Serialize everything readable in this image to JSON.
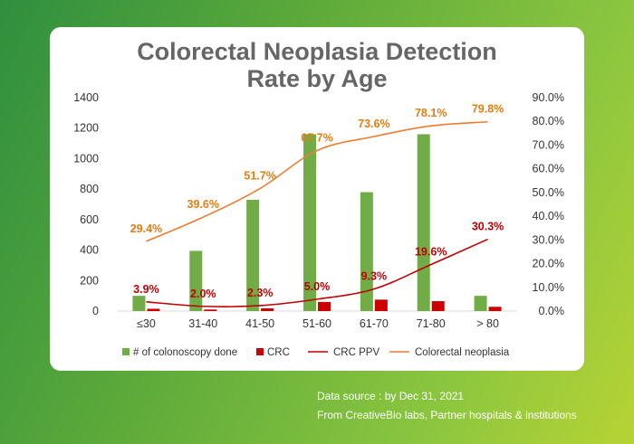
{
  "title": "Colorectal Neoplasia Detection\nRate by Age",
  "footer": {
    "line1": "Data source : by Dec 31, 2021",
    "line2": "From  CreativeBio labs, Partner hospitals & institutions"
  },
  "colors": {
    "colonoscopy": "#70ad47",
    "crc": "#cc0000",
    "crc_ppv": "#c00000",
    "neoplasia": "#ed7d31",
    "label_neoplasia": "#e57c12",
    "label_ppv": "#c00000"
  },
  "chart_data": {
    "type": "bar",
    "title": "Colorectal Neoplasia Detection Rate by Age",
    "categories": [
      "≤30",
      "31-40",
      "41-50",
      "51-60",
      "61-70",
      "71-80",
      "> 80"
    ],
    "y_left": {
      "min": 0,
      "max": 1400,
      "ticks": [
        "0",
        "200",
        "400",
        "600",
        "800",
        "1000",
        "1200",
        "1400"
      ]
    },
    "y_right": {
      "min": 0,
      "max": 90,
      "ticks": [
        "0.0%",
        "10.0%",
        "20.0%",
        "30.0%",
        "40.0%",
        "50.0%",
        "60.0%",
        "70.0%",
        "80.0%",
        "90.0%"
      ]
    },
    "series": [
      {
        "name": "# of colonoscopy done",
        "kind": "bar",
        "axis": "left",
        "values": [
          100,
          395,
          730,
          1160,
          780,
          1160,
          100
        ]
      },
      {
        "name": "CRC",
        "kind": "bar",
        "axis": "left",
        "values": [
          15,
          10,
          18,
          60,
          75,
          65,
          28
        ]
      },
      {
        "name": "CRC PPV",
        "kind": "line",
        "axis": "right",
        "values": [
          3.9,
          2.0,
          2.3,
          5.0,
          9.3,
          19.6,
          30.3
        ],
        "labels": [
          "3.9%",
          "2.0%",
          "2.3%",
          "5.0%",
          "9.3%",
          "19.6%",
          "30.3%"
        ]
      },
      {
        "name": "Colorectal neoplasia",
        "kind": "line",
        "axis": "right",
        "values": [
          29.4,
          39.6,
          51.7,
          67.7,
          73.6,
          78.1,
          79.8
        ],
        "labels": [
          "29.4%",
          "39.6%",
          "51.7%",
          "67.7%",
          "73.6%",
          "78.1%",
          "79.8%"
        ]
      }
    ],
    "legend_position": "bottom",
    "grid": false
  }
}
